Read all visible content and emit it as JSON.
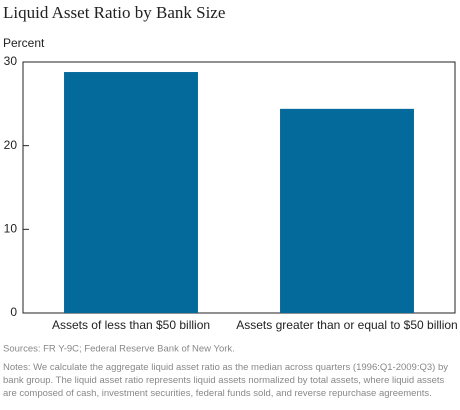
{
  "chart_data": {
    "type": "bar",
    "title": "Liquid Asset Ratio by Bank Size",
    "y_label": "Percent",
    "categories": [
      "Assets of less than $50 billion",
      "Assets greater than or equal to $50 billion"
    ],
    "values": [
      28.8,
      24.4
    ],
    "color": "#04699b",
    "ylim": [
      0,
      30
    ],
    "yticks": [
      0,
      10,
      20,
      30
    ],
    "source": "Sources: FR Y-9C; Federal Reserve Bank of New York.",
    "notes": "Notes: We calculate the aggregate liquid asset ratio as the median across quarters (1996:Q1-2009:Q3) by bank group. The liquid asset ratio represents liquid assets normalized by total assets, where liquid assets are composed of cash, investment securities, federal funds sold, and reverse repurchase agreements."
  }
}
